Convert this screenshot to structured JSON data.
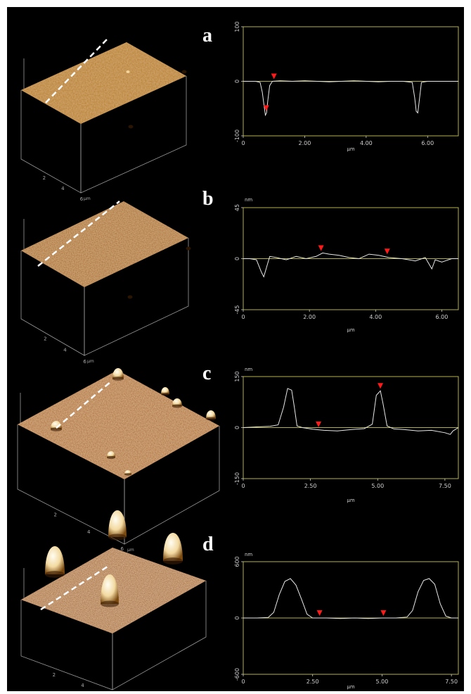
{
  "panels": [
    {
      "letter": "a"
    },
    {
      "letter": "b"
    },
    {
      "letter": "c"
    },
    {
      "letter": "d"
    }
  ],
  "colors": {
    "background": "#000000",
    "frame": "#b3b04a",
    "trace": "#e8e8e8",
    "marker": "#ff1a1a",
    "surface_a": "#b87c1e",
    "surface_b": "#a9681b",
    "surface_c": "#a85d16",
    "surface_d": "#9a4c10",
    "peak": "#fff4d6"
  },
  "surface_axes": {
    "ticks": [
      "2",
      "4",
      "6"
    ],
    "unit": "μm"
  },
  "chart_data": [
    {
      "type": "line",
      "xlabel": "μm",
      "ylabel": "",
      "xlim": [
        0,
        7.0
      ],
      "ylim": [
        -100,
        100
      ],
      "xticks": [
        0,
        2,
        4,
        6
      ],
      "xtick_labels": [
        "0",
        "2.00",
        "4.00",
        "6.00"
      ],
      "yticks": [
        100,
        0,
        -100
      ],
      "ytick_labels": [
        "100",
        "0",
        "-100"
      ],
      "x": [
        0,
        0.4,
        0.55,
        0.62,
        0.68,
        0.72,
        0.76,
        0.8,
        0.86,
        0.95,
        1.2,
        1.6,
        2.0,
        2.4,
        2.8,
        3.2,
        3.6,
        4.0,
        4.4,
        4.8,
        5.2,
        5.5,
        5.58,
        5.63,
        5.68,
        5.72,
        5.8,
        6.0,
        6.5,
        7.0
      ],
      "y": [
        0,
        0,
        -2,
        -20,
        -45,
        -62,
        -58,
        -35,
        -8,
        0,
        1,
        0,
        1,
        0,
        -1,
        0,
        1,
        0,
        -1,
        0,
        0,
        -2,
        -30,
        -55,
        -58,
        -40,
        -2,
        0,
        0,
        0
      ],
      "markers": [
        {
          "x": 0.75,
          "y": -58
        },
        {
          "x": 1.0,
          "y": 0
        }
      ]
    },
    {
      "type": "line",
      "xlabel": "μm",
      "ylabel": "nm",
      "xlim": [
        0,
        6.5
      ],
      "ylim": [
        -45,
        45
      ],
      "xticks": [
        0,
        2,
        4,
        6
      ],
      "xtick_labels": [
        "0",
        "2.00",
        "4.00",
        "6.00"
      ],
      "yticks": [
        45,
        0,
        -45
      ],
      "ytick_labels": [
        "45",
        "0",
        "-45"
      ],
      "x": [
        0,
        0.2,
        0.4,
        0.55,
        0.62,
        0.7,
        0.8,
        1.0,
        1.3,
        1.6,
        1.9,
        2.2,
        2.4,
        2.6,
        2.9,
        3.2,
        3.5,
        3.8,
        4.1,
        4.4,
        4.8,
        5.2,
        5.5,
        5.7,
        5.8,
        6.0,
        6.3,
        6.5
      ],
      "y": [
        0,
        0,
        -1,
        -12,
        -16,
        -8,
        2,
        1,
        -1,
        2,
        0,
        2,
        5,
        4,
        3,
        1,
        0,
        4,
        3,
        1,
        0,
        -2,
        1,
        -9,
        -1,
        -3,
        0,
        0
      ],
      "markers": [
        {
          "x": 2.35,
          "y": 5
        },
        {
          "x": 4.35,
          "y": 2
        }
      ]
    },
    {
      "type": "line",
      "xlabel": "μm",
      "ylabel": "nm",
      "xlim": [
        0,
        8.0
      ],
      "ylim": [
        -150,
        150
      ],
      "xticks": [
        0,
        2.5,
        5,
        7.5
      ],
      "xtick_labels": [
        "0",
        "2.50",
        "5.00",
        "7.50"
      ],
      "yticks": [
        150,
        0,
        -150
      ],
      "ytick_labels": [
        "150",
        "0",
        "-150"
      ],
      "x": [
        0,
        0.5,
        1.0,
        1.3,
        1.5,
        1.65,
        1.8,
        1.9,
        2.0,
        2.2,
        2.6,
        3.0,
        3.5,
        4.0,
        4.5,
        4.8,
        4.95,
        5.1,
        5.2,
        5.35,
        5.6,
        6.0,
        6.5,
        7.0,
        7.5,
        7.7,
        7.8,
        8.0
      ],
      "y": [
        0,
        2,
        4,
        8,
        60,
        115,
        110,
        60,
        5,
        0,
        -5,
        -8,
        -10,
        -6,
        -3,
        10,
        95,
        108,
        70,
        5,
        -4,
        -6,
        -10,
        -8,
        -15,
        -20,
        -10,
        0
      ],
      "markers": [
        {
          "x": 2.8,
          "y": -5
        },
        {
          "x": 5.1,
          "y": 108
        }
      ]
    },
    {
      "type": "line",
      "xlabel": "μm",
      "ylabel": "nm",
      "xlim": [
        0,
        7.75
      ],
      "ylim": [
        -600,
        600
      ],
      "xticks": [
        0,
        2.5,
        5,
        7.5
      ],
      "xtick_labels": [
        "0",
        "2.50",
        "5.00",
        "7.50"
      ],
      "yticks": [
        600,
        0,
        -600
      ],
      "ytick_labels": [
        "600",
        "0",
        "-600"
      ],
      "x": [
        0,
        0.5,
        0.9,
        1.1,
        1.3,
        1.5,
        1.7,
        1.9,
        2.1,
        2.3,
        2.5,
        3.0,
        3.5,
        4.0,
        4.5,
        5.0,
        5.5,
        5.9,
        6.1,
        6.3,
        6.5,
        6.7,
        6.9,
        7.1,
        7.3,
        7.5,
        7.75
      ],
      "y": [
        0,
        0,
        5,
        60,
        250,
        390,
        420,
        350,
        200,
        40,
        0,
        0,
        -5,
        0,
        -5,
        0,
        0,
        10,
        80,
        280,
        400,
        420,
        360,
        150,
        20,
        0,
        0
      ],
      "markers": [
        {
          "x": 2.75,
          "y": 0
        },
        {
          "x": 5.05,
          "y": 0
        }
      ]
    }
  ]
}
